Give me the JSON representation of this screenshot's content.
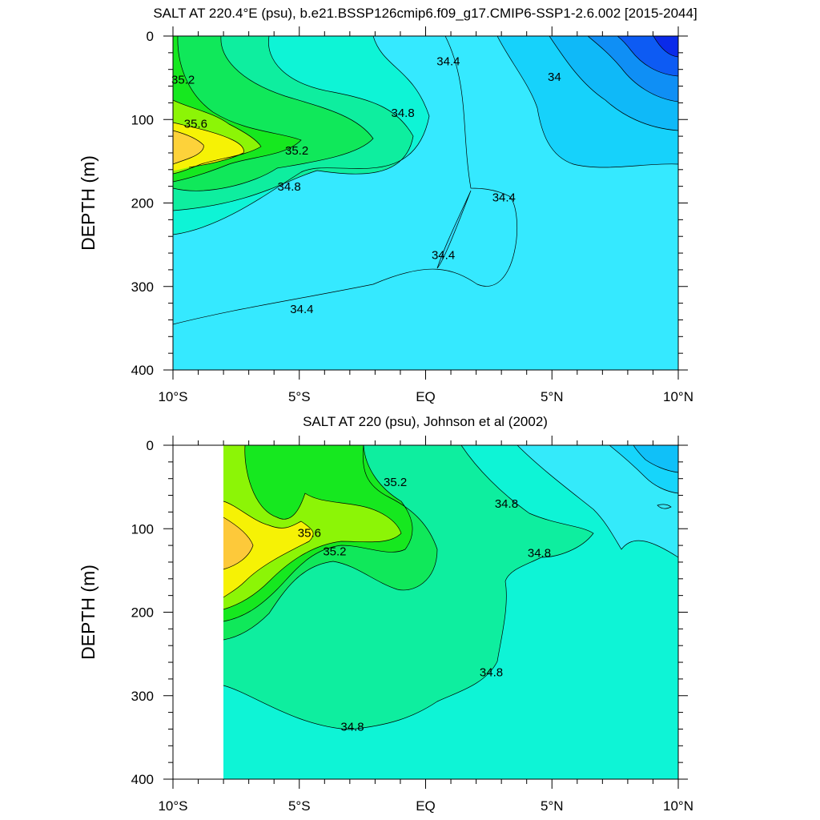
{
  "chart_data": [
    {
      "type": "heatmap",
      "subtype": "filled-contour",
      "title": "SALT AT 220.4°E (psu), b.e21.BSSP126cmip6.f09_g17.CMIP6-SSP1-2.6.002 [2015-2044]",
      "xlabel": "",
      "ylabel": "DEPTH (m)",
      "xlim": [
        -10,
        10
      ],
      "ylim": [
        400,
        0
      ],
      "yticks": [
        "0",
        "100",
        "200",
        "300",
        "400"
      ],
      "xticks": [
        "10°S",
        "5°S",
        "EQ",
        "5°N",
        "10°N"
      ],
      "contour_levels": [
        33.6,
        33.8,
        34.0,
        34.2,
        34.4,
        34.6,
        34.8,
        35.0,
        35.2,
        35.4,
        35.6,
        35.8
      ],
      "contour_labels": [
        {
          "text": "35.2",
          "x": -9.6,
          "y": 55
        },
        {
          "text": "35.6",
          "x": -9.1,
          "y": 108
        },
        {
          "text": "35.2",
          "x": -5.1,
          "y": 140
        },
        {
          "text": "34.8",
          "x": -5.4,
          "y": 183
        },
        {
          "text": "34.8",
          "x": -0.9,
          "y": 95
        },
        {
          "text": "34.4",
          "x": 0.9,
          "y": 33
        },
        {
          "text": "34",
          "x": 5.1,
          "y": 52
        },
        {
          "text": "34.4",
          "x": 3.1,
          "y": 196
        },
        {
          "text": "34.4",
          "x": 0.7,
          "y": 265
        },
        {
          "text": "34.4",
          "x": -4.9,
          "y": 330
        }
      ]
    },
    {
      "type": "heatmap",
      "subtype": "filled-contour",
      "title": "SALT AT 220 (psu), Johnson et al (2002)",
      "xlabel": "",
      "ylabel": "DEPTH (m)",
      "xlim": [
        -10,
        10
      ],
      "ylim": [
        400,
        0
      ],
      "data_xrange": [
        -8,
        10
      ],
      "yticks": [
        "0",
        "100",
        "200",
        "300",
        "400"
      ],
      "xticks": [
        "10°S",
        "5°S",
        "EQ",
        "5°N",
        "10°N"
      ],
      "contour_levels": [
        34.4,
        34.6,
        34.8,
        35.0,
        35.2,
        35.4,
        35.6,
        35.8
      ],
      "contour_labels": [
        {
          "text": "35.2",
          "x": -1.2,
          "y": 47
        },
        {
          "text": "35.6",
          "x": -4.6,
          "y": 108
        },
        {
          "text": "35.2",
          "x": -3.6,
          "y": 130
        },
        {
          "text": "34.8",
          "x": 3.2,
          "y": 73
        },
        {
          "text": "34.8",
          "x": 4.5,
          "y": 132
        },
        {
          "text": "34.8",
          "x": 2.6,
          "y": 275
        },
        {
          "text": "34.8",
          "x": -2.9,
          "y": 340
        }
      ]
    }
  ]
}
